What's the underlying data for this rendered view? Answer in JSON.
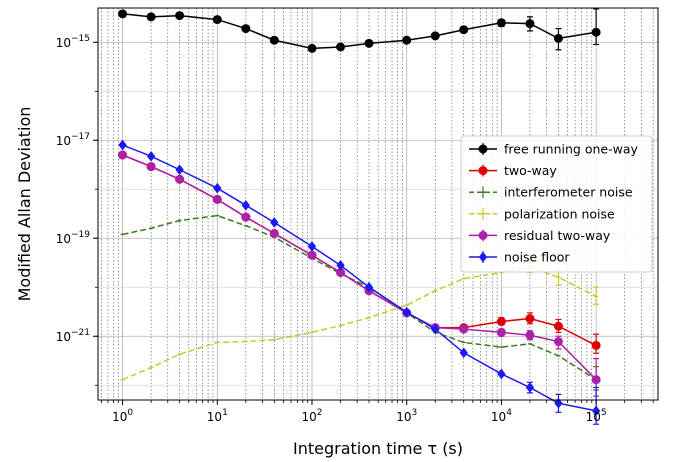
{
  "chart_data": {
    "type": "line",
    "title": "",
    "xlabel": "Integration time τ (s)",
    "ylabel": "Modified Allan Deviation",
    "xscale": "log",
    "yscale": "log",
    "xlim": [
      0.55,
      450000
    ],
    "ylim": [
      5e-23,
      5e-15
    ],
    "x_ticks": [
      {
        "value": 1,
        "base": "10",
        "exp": "0"
      },
      {
        "value": 10,
        "base": "10",
        "exp": "1"
      },
      {
        "value": 100,
        "base": "10",
        "exp": "2"
      },
      {
        "value": 1000,
        "base": "10",
        "exp": "3"
      },
      {
        "value": 10000,
        "base": "10",
        "exp": "4"
      },
      {
        "value": 100000,
        "base": "10",
        "exp": "5"
      }
    ],
    "y_ticks": [
      {
        "value": 1e-21,
        "base": "10",
        "exp": "−21"
      },
      {
        "value": 1e-19,
        "base": "10",
        "exp": "−19"
      },
      {
        "value": 1e-17,
        "base": "10",
        "exp": "−17"
      },
      {
        "value": 1e-15,
        "base": "10",
        "exp": "−15"
      }
    ],
    "grid": "major-and-minor",
    "legend_position": "right",
    "series": [
      {
        "name": "free running one-way",
        "color": "#000000",
        "linestyle": "solid",
        "marker": "circle",
        "x": [
          1,
          2,
          4,
          10,
          20,
          40,
          100,
          200,
          400,
          1000,
          2000,
          4000,
          10000,
          20000,
          40000,
          100000
        ],
        "y": [
          3.8e-15,
          3.3e-15,
          3.5e-15,
          2.9e-15,
          1.9e-15,
          1.1e-15,
          7.5e-16,
          8e-16,
          9.5e-16,
          1.1e-15,
          1.35e-15,
          1.8e-15,
          2.5e-15,
          2.4e-15,
          1.2e-15,
          1.6e-15
        ],
        "err_low": [
          null,
          null,
          null,
          null,
          null,
          null,
          null,
          null,
          null,
          null,
          null,
          null,
          2.1e-15,
          1.7e-15,
          7e-16,
          9e-16
        ],
        "err_high": [
          null,
          null,
          null,
          null,
          null,
          null,
          null,
          null,
          null,
          null,
          null,
          null,
          2.9e-15,
          3.3e-15,
          1.9e-15,
          4.8e-15
        ]
      },
      {
        "name": "two-way",
        "color": "#dd0000",
        "linestyle": "solid",
        "marker": "circle",
        "x": [
          1,
          2,
          4,
          10,
          20,
          40,
          100,
          200,
          400,
          1000,
          2000,
          4000,
          10000,
          20000,
          40000,
          100000
        ],
        "y": [
          5e-18,
          2.9e-18,
          1.6e-18,
          6.2e-19,
          2.7e-19,
          1.25e-19,
          4.5e-20,
          2e-20,
          8.5e-21,
          3e-21,
          1.5e-21,
          1.5e-21,
          2e-21,
          2.3e-21,
          1.6e-21,
          6.5e-22
        ],
        "err_low": [
          null,
          null,
          null,
          null,
          null,
          null,
          null,
          null,
          null,
          null,
          null,
          null,
          1.7e-21,
          1.8e-21,
          1.2e-21,
          4.5e-22
        ],
        "err_high": [
          null,
          null,
          null,
          null,
          null,
          null,
          null,
          null,
          null,
          null,
          null,
          null,
          2.4e-21,
          3e-21,
          2.2e-21,
          1.1e-21
        ]
      },
      {
        "name": "interferometer noise",
        "color": "#3a7d1e",
        "linestyle": "dashed",
        "marker": "tick",
        "x": [
          1,
          2,
          4,
          10,
          20,
          40,
          100,
          200,
          400,
          1000,
          2000,
          4000,
          10000,
          20000,
          40000,
          100000
        ],
        "y": [
          1.2e-19,
          1.6e-19,
          2.3e-19,
          2.9e-19,
          1.8e-19,
          1.05e-19,
          3.9e-20,
          1.9e-20,
          1e-20,
          3e-21,
          1.2e-21,
          7.5e-22,
          6e-22,
          7e-22,
          4e-22,
          1.3e-22
        ],
        "err_low": [
          null,
          null,
          null,
          null,
          null,
          null,
          null,
          null,
          null,
          null,
          null,
          null,
          null,
          null,
          null,
          8e-23
        ],
        "err_high": [
          null,
          null,
          null,
          null,
          null,
          null,
          null,
          null,
          null,
          null,
          null,
          null,
          null,
          null,
          null,
          2.4e-22
        ]
      },
      {
        "name": "polarization noise",
        "color": "#c8c832",
        "linestyle": "dashed",
        "marker": "tick",
        "x": [
          1,
          2,
          4,
          10,
          20,
          40,
          100,
          200,
          400,
          1000,
          2000,
          4000,
          10000,
          20000,
          40000,
          100000
        ],
        "y": [
          1.3e-22,
          2.3e-22,
          4.3e-22,
          7.5e-22,
          7.8e-22,
          8.5e-22,
          1.2e-21,
          1.65e-21,
          2.4e-21,
          4.3e-21,
          8.5e-21,
          1.5e-20,
          2e-20,
          2.6e-20,
          1.6e-20,
          6.5e-21
        ],
        "err_low": [
          null,
          null,
          null,
          null,
          null,
          null,
          null,
          null,
          null,
          null,
          null,
          null,
          null,
          2e-20,
          1.1e-20,
          4.5e-21
        ],
        "err_high": [
          null,
          null,
          null,
          null,
          null,
          null,
          null,
          null,
          null,
          null,
          null,
          null,
          null,
          3.3e-20,
          2.2e-20,
          1e-20
        ]
      },
      {
        "name": "residual two-way",
        "color": "#aa22aa",
        "linestyle": "solid",
        "marker": "circle",
        "x": [
          1,
          2,
          4,
          10,
          20,
          40,
          100,
          200,
          400,
          1000,
          2000,
          4000,
          10000,
          20000,
          40000,
          100000
        ],
        "y": [
          5e-18,
          2.9e-18,
          1.6e-18,
          6.2e-19,
          2.7e-19,
          1.25e-19,
          4.5e-20,
          2e-20,
          8.5e-21,
          3e-21,
          1.5e-21,
          1.4e-21,
          1.2e-21,
          1.05e-21,
          7.8e-22,
          1.3e-22
        ],
        "err_low": [
          null,
          null,
          null,
          null,
          null,
          null,
          null,
          null,
          null,
          null,
          null,
          null,
          1e-21,
          8.5e-22,
          5.5e-22,
          6e-23
        ],
        "err_high": [
          null,
          null,
          null,
          null,
          null,
          null,
          null,
          null,
          null,
          null,
          null,
          null,
          1.4e-21,
          1.3e-21,
          1e-21,
          3.5e-22
        ]
      },
      {
        "name": "noise floor",
        "color": "#1a1aee",
        "linestyle": "solid",
        "marker": "diamond",
        "x": [
          1,
          2,
          4,
          10,
          20,
          40,
          100,
          200,
          400,
          1000,
          2000,
          4000,
          10000,
          20000,
          40000,
          100000
        ],
        "y": [
          8e-18,
          4.7e-18,
          2.5e-18,
          1.05e-18,
          4.7e-19,
          2.1e-19,
          6.8e-20,
          2.8e-20,
          1e-20,
          3.1e-21,
          1.4e-21,
          4.6e-22,
          1.7e-22,
          9e-23,
          4.3e-23,
          3e-23
        ],
        "err_low": [
          null,
          null,
          null,
          null,
          null,
          null,
          null,
          null,
          null,
          null,
          null,
          null,
          null,
          7e-23,
          2.8e-23,
          1.6e-23
        ],
        "err_high": [
          null,
          null,
          null,
          null,
          null,
          null,
          null,
          null,
          null,
          null,
          null,
          null,
          null,
          1.15e-22,
          6.5e-23,
          9e-23
        ]
      }
    ]
  }
}
